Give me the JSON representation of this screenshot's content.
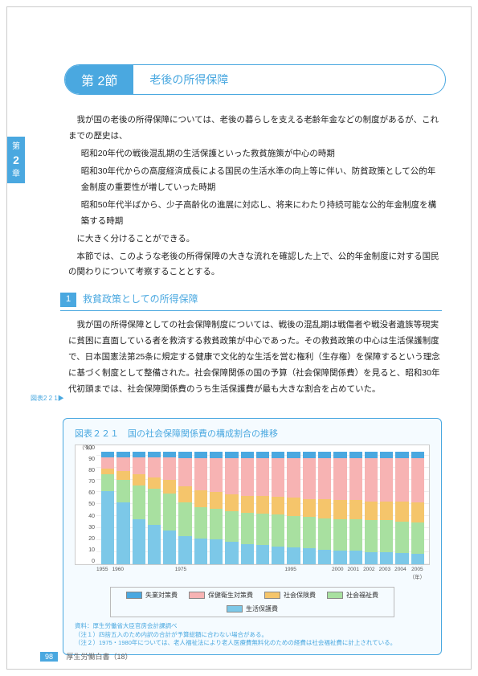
{
  "chapter_tab": {
    "top": "第",
    "num": "2",
    "bottom": "章"
  },
  "section": {
    "badge": "第 2節",
    "title": "老後の所得保障"
  },
  "para1": "我が国の老後の所得保障については、老後の暮らしを支える老齢年金などの制度があるが、これまでの歴史は、",
  "bullet1": "昭和20年代の戦後混乱期の生活保護といった救貧施策が中心の時期",
  "bullet2": "昭和30年代からの高度経済成長による国民の生活水準の向上等に伴い、防貧政策として公的年金制度の重要性が増していった時期",
  "bullet3": "昭和50年代半ばから、少子高齢化の進展に対応し、将来にわたり持続可能な公的年金制度を構築する時期",
  "para2": "に大きく分けることができる。",
  "para3": "本節では、このような老後の所得保障の大きな流れを確認した上で、公的年金制度に対する国民の関わりについて考察することとする。",
  "sub": {
    "num": "1",
    "title": "救貧政策としての所得保障"
  },
  "para4": "我が国の所得保障としての社会保障制度については、戦後の混乱期は戦傷者や戦没者遺族等現実に貧困に直面している者を救済する救貧政策が中心であった。その救貧政策の中心は生活保護制度で、日本国憲法第25条に規定する健康で文化的な生活を営む権利（生存権）を保障するという理念に基づく制度として整備された。社会保障関係の国の予算（社会保障関係費）を見ると、昭和30年代初頭までは、社会保障関係費のうち生活保護費が最も大きな割合を占めていた。",
  "figure_ref": "図表2 2 1▶",
  "chart": {
    "title": "図表２２１　国の社会保障関係費の構成割合の推移",
    "pct_label": "（％）",
    "y_ticks": [
      "0",
      "10",
      "20",
      "30",
      "40",
      "50",
      "60",
      "70",
      "80",
      "90",
      "100"
    ],
    "years": [
      "1955",
      "1960",
      "",
      "",
      "",
      "1975",
      "",
      "",
      "",
      "",
      "",
      "",
      "1995",
      "",
      "",
      "2000",
      "2001",
      "2002",
      "2003",
      "2004",
      "2005（年）"
    ],
    "colors": {
      "unemp": "#4aa8e0",
      "health": "#f7b3b3",
      "welfare": "#f5c56b",
      "social": "#a8e0a0",
      "livelihood": "#7cc8e8"
    },
    "series": [
      {
        "u": 5,
        "h": 10,
        "w": 5,
        "s": 15,
        "l": 65
      },
      {
        "u": 5,
        "h": 12,
        "w": 8,
        "s": 20,
        "l": 55
      },
      {
        "u": 5,
        "h": 15,
        "w": 10,
        "s": 30,
        "l": 40
      },
      {
        "u": 5,
        "h": 18,
        "w": 10,
        "s": 32,
        "l": 35
      },
      {
        "u": 5,
        "h": 20,
        "w": 12,
        "s": 33,
        "l": 30
      },
      {
        "u": 6,
        "h": 25,
        "w": 14,
        "s": 30,
        "l": 25
      },
      {
        "u": 6,
        "h": 28,
        "w": 15,
        "s": 28,
        "l": 23
      },
      {
        "u": 6,
        "h": 30,
        "w": 15,
        "s": 27,
        "l": 22
      },
      {
        "u": 6,
        "h": 32,
        "w": 15,
        "s": 27,
        "l": 20
      },
      {
        "u": 6,
        "h": 33,
        "w": 15,
        "s": 28,
        "l": 18
      },
      {
        "u": 6,
        "h": 33,
        "w": 16,
        "s": 28,
        "l": 17
      },
      {
        "u": 6,
        "h": 34,
        "w": 16,
        "s": 28,
        "l": 16
      },
      {
        "u": 6,
        "h": 35,
        "w": 16,
        "s": 28,
        "l": 15
      },
      {
        "u": 6,
        "h": 36,
        "w": 16,
        "s": 28,
        "l": 14
      },
      {
        "u": 6,
        "h": 36,
        "w": 17,
        "s": 28,
        "l": 13
      },
      {
        "u": 6,
        "h": 37,
        "w": 17,
        "s": 28,
        "l": 12
      },
      {
        "u": 6,
        "h": 37,
        "w": 17,
        "s": 28,
        "l": 12
      },
      {
        "u": 6,
        "h": 38,
        "w": 17,
        "s": 28,
        "l": 11
      },
      {
        "u": 6,
        "h": 38,
        "w": 17,
        "s": 28,
        "l": 11
      },
      {
        "u": 6,
        "h": 38,
        "w": 18,
        "s": 28,
        "l": 10
      },
      {
        "u": 6,
        "h": 39,
        "w": 18,
        "s": 28,
        "l": 9
      }
    ],
    "legend": [
      {
        "key": "unemp",
        "label": "失業対策費"
      },
      {
        "key": "health",
        "label": "保健衛生対策費"
      },
      {
        "key": "welfare",
        "label": "社会保険費"
      },
      {
        "key": "social",
        "label": "社会福祉費"
      },
      {
        "key": "livelihood",
        "label": "生活保護費"
      }
    ],
    "note_source": "資料：厚生労働省大臣官房会計課調べ",
    "note1": "（注１）四捨五入のため内訳の合計が予算総額に合わない場合がある。",
    "note2": "（注２）1975・1980年については、老人福祉法により老人医療費無料化のための経費は社会福祉費に計上されている。"
  },
  "footer": {
    "page": "98",
    "text": "厚生労働白書（18）"
  }
}
